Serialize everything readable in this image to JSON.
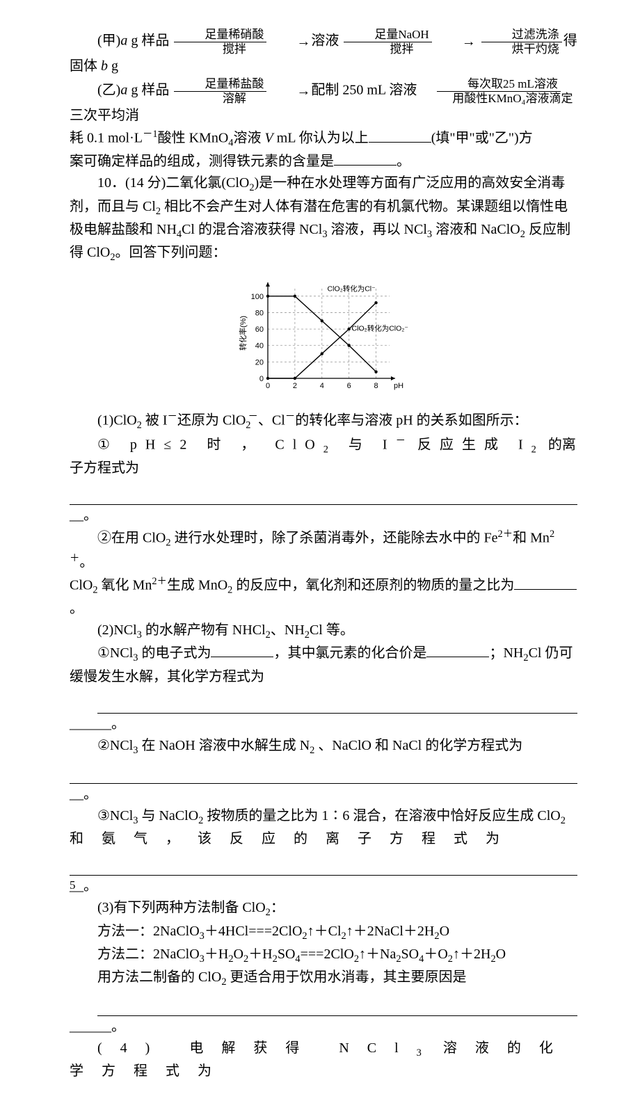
{
  "jia_line": {
    "pre": "(甲)",
    "sample": " g 样品",
    "step1_top": "足量稀硝酸",
    "step1_bot": "搅拌",
    "r1": "溶液",
    "step2_top": "足量NaOH",
    "step2_bot": "搅拌",
    "r2": "过滤洗涤",
    "r3": "烘干灼烧",
    "r4": "得固体 ",
    "r5": " g"
  },
  "yi_line": {
    "pre": "(乙)",
    "sample": " g 样品",
    "step1_top": "足量稀盐酸",
    "step1_bot": "溶解",
    "r1": "配制 250 mL 溶液",
    "step2_top": "每次取25 mL溶液",
    "step2_bot": "用酸性KMnO₄溶液滴定",
    "r2": "三次平均消"
  },
  "yi_cont1": "耗 0.1 mol·L",
  "yi_cont2": "酸性 KMnO",
  "yi_cont3": "溶液 ",
  "yi_cont4": " mL 你认为以上",
  "yi_cont5": "(填\"甲\"或\"乙\")方",
  "yi_cont6": "案可确定样品的组成，测得铁元素的含量是",
  "yi_period": "。",
  "q10_intro1_a": "10．(14 分)二氧化氯(ClO",
  "q10_intro1_b": ")是一种在水处理等方面有广泛应用的高效安全消毒",
  "q10_intro2_a": "剂，而且与 Cl",
  "q10_intro2_b": " 相比不会产生对人体有潜在危害的有机氯代物。某课题组以惰性电",
  "q10_intro3_a": "极电解盐酸和 NH",
  "q10_intro3_b": "Cl 的混合溶液获得 NCl",
  "q10_intro3_c": " 溶液，再以 NCl",
  "q10_intro3_d": " 溶液和 NaClO",
  "q10_intro3_e": " 反应制",
  "q10_intro4_a": "得 ClO",
  "q10_intro4_b": "。回答下列问题：",
  "chart": {
    "ylabel": "转化率(%)",
    "xlabel": "pH",
    "yticks": [
      "0",
      "20",
      "40",
      "60",
      "80",
      "100"
    ],
    "xticks": [
      "0",
      "2",
      "4",
      "6",
      "8"
    ],
    "series1_label": "ClO₂转化为Cl⁻",
    "series2_label": "ClO₂转化为ClO₂⁻",
    "series1_color": "#000000",
    "series2_color": "#000000",
    "grid_color": "#999999",
    "axis_color": "#000000"
  },
  "q1_head_a": "(1)ClO",
  "q1_head_b": " 被 I",
  "q1_head_c": "还原为 ClO",
  "q1_head_d": "、Cl",
  "q1_head_e": "的转化率与溶液 pH 的关系如图所示：",
  "q1_1a_a": "① pH≤2 时 ， ClO",
  "q1_1a_b": " 与 I",
  "q1_1a_c": " 反应生成 I",
  "q1_1a_d": " 的离子方程式为",
  "line_period": "__。",
  "q1_2_a": "②在用 ClO",
  "q1_2_b": " 进行水处理时，除了杀菌消毒外，还能除去水中的 Fe",
  "q1_2_c": "和 Mn",
  "q1_2_d": "。",
  "q1_2e_a": "ClO",
  "q1_2e_b": " 氧化 Mn",
  "q1_2e_c": "生成 MnO",
  "q1_2e_d": " 的反应中，氧化剂和还原剂的物质的量之比为",
  "q1_2e_e": "。",
  "q2_head_a": "(2)NCl",
  "q2_head_b": " 的水解产物有 NHCl",
  "q2_head_c": "、NH",
  "q2_head_d": "Cl 等。",
  "q2_1_a": "①NCl",
  "q2_1_b": " 的电子式为",
  "q2_1_c": "，其中氯元素的化合价是",
  "q2_1_d": "；NH",
  "q2_1_e": "Cl 仍可",
  "q2_1_f": "缓慢发生水解，其化学方程式为",
  "blank_period": "______。",
  "q2_2_a": "②NCl",
  "q2_2_b": " 在 NaOH 溶液中水解生成 N",
  "q2_2_c": " 、NaClO 和 NaCl 的化学方程式为",
  "q2_3_a": "③NCl",
  "q2_3_b": " 与 NaClO",
  "q2_3_c": " 按物质的量之比为 1∶6 混合，在溶液中恰好反应生成 ClO",
  "q2_3d": "和氨气，该反应的离子方程式为",
  "q3_head_a": "(3)有下列两种方法制备 ClO",
  "q3_head_b": "：",
  "q3_m1_a": "方法一：2NaClO",
  "q3_m1_b": "＋4HCl===2ClO",
  "q3_m1_c": "↑＋Cl",
  "q3_m1_d": "↑＋2NaCl＋2H",
  "q3_m1_e": "O",
  "q3_m2_a": "方法二：2NaClO",
  "q3_m2_b": "＋H",
  "q3_m2_c": "O",
  "q3_m2_d": "＋H",
  "q3_m2_e": "SO",
  "q3_m2_f": "===2ClO",
  "q3_m2_g": "↑＋Na",
  "q3_m2_h": "SO",
  "q3_m2_i": "＋O",
  "q3_m2_j": "↑＋2H",
  "q3_m2_k": "O",
  "q3_reason_a": "用方法二制备的 ClO",
  "q3_reason_b": " 更适合用于饮用水消毒，其主要原因是",
  "q4_a": "(4) 电解获得 NCl",
  "q4_b": " 溶液的化学方程式为",
  "page": "5"
}
